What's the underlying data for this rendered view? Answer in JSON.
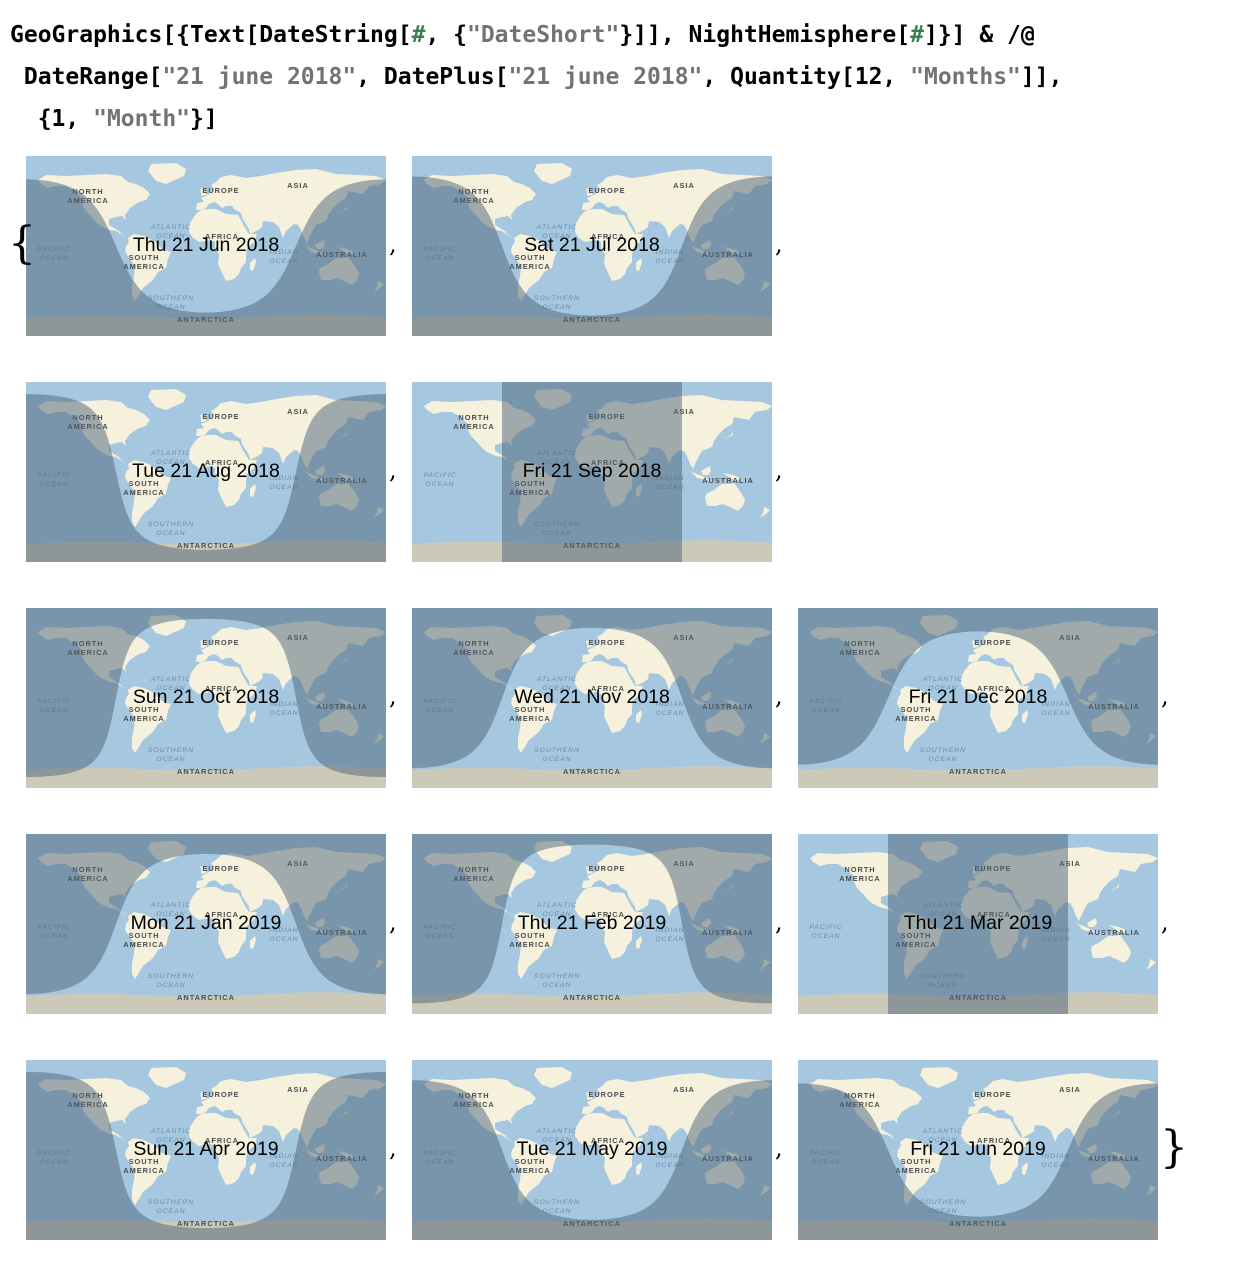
{
  "input": {
    "lines": [
      [
        {
          "t": "GeoGraphics[{Text[DateString["
        },
        {
          "t": "#",
          "c": "slot"
        },
        {
          "t": ", {"
        },
        {
          "t": "\"DateShort\"",
          "c": "str"
        },
        {
          "t": "}]], NightHemisphere["
        },
        {
          "t": "#",
          "c": "slot"
        },
        {
          "t": "]}] & /@"
        }
      ],
      [
        {
          "t": " DateRange["
        },
        {
          "t": "\"21 june 2018\"",
          "c": "str"
        },
        {
          "t": ", DatePlus["
        },
        {
          "t": "\"21 june 2018\"",
          "c": "str"
        },
        {
          "t": ", Quantity[12, "
        },
        {
          "t": "\"Months\"",
          "c": "str"
        },
        {
          "t": "]],"
        }
      ],
      [
        {
          "t": "  {1, "
        },
        {
          "t": "\"Month\"",
          "c": "str"
        },
        {
          "t": "}]"
        }
      ]
    ]
  },
  "output": {
    "open_brace": "{",
    "close_brace": "}",
    "separator": ",",
    "map_labels": {
      "north_america": [
        "NORTH",
        "AMERICA"
      ],
      "south_america": [
        "SOUTH",
        "AMERICA"
      ],
      "europe": "EUROPE",
      "africa": "AFRICA",
      "asia": "ASIA",
      "australia": "AUSTRALIA",
      "antarctica": "ANTARCTICA",
      "pacific": [
        "PACIFIC",
        "OCEAN"
      ],
      "atlantic": [
        "ATLANTIC",
        "OCEAN"
      ],
      "indian": [
        "INDIAN",
        "OCEAN"
      ],
      "southern": [
        "SOUTHERN",
        "OCEAN"
      ]
    },
    "colors": {
      "ocean": "#a5c7e0",
      "land": "#f5f1dc",
      "ice": "#cdc9b8",
      "night": "#4e6478",
      "night_opacity": 0.5
    },
    "maps": [
      {
        "date": "Thu 21 Jun 2018",
        "subsolar_lon": 0,
        "declination": 23.4
      },
      {
        "date": "Sat 21 Jul 2018",
        "subsolar_lon": 0,
        "declination": 20.5
      },
      {
        "date": "Tue 21 Aug 2018",
        "subsolar_lon": 0,
        "declination": 12.1
      },
      {
        "date": "Fri 21 Sep 2018",
        "subsolar_lon": 0,
        "declination": 0.6
      },
      {
        "date": "Sun 21 Oct 2018",
        "subsolar_lon": 0,
        "declination": -10.9
      },
      {
        "date": "Wed 21 Nov 2018",
        "subsolar_lon": 0,
        "declination": -19.9
      },
      {
        "date": "Fri 21 Dec 2018",
        "subsolar_lon": 0,
        "declination": -23.4
      },
      {
        "date": "Mon 21 Jan 2019",
        "subsolar_lon": 0,
        "declination": -19.9
      },
      {
        "date": "Thu 21 Feb 2019",
        "subsolar_lon": 0,
        "declination": -10.6
      },
      {
        "date": "Thu 21 Mar 2019",
        "subsolar_lon": 0,
        "declination": 0.1
      },
      {
        "date": "Sun 21 Apr 2019",
        "subsolar_lon": 0,
        "declination": 11.9
      },
      {
        "date": "Tue 21 May 2019",
        "subsolar_lon": 0,
        "declination": 20.2
      },
      {
        "date": "Fri 21 Jun 2019",
        "subsolar_lon": 0,
        "declination": 23.4
      }
    ]
  }
}
